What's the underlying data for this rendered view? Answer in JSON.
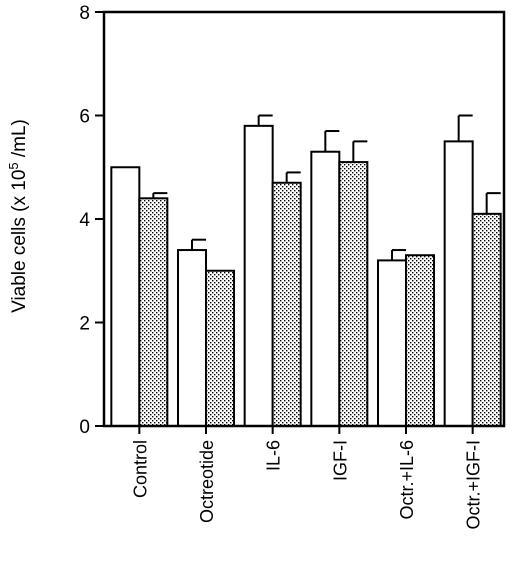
{
  "chart_data": {
    "type": "bar",
    "title": "",
    "xlabel": "",
    "ylabel": {
      "prefix": "Viable cells (x 10",
      "superscript": "5",
      "suffix": " /mL)"
    },
    "ylim": [
      0,
      8
    ],
    "yticks": [
      0,
      2,
      4,
      6,
      8
    ],
    "categories": [
      "Control",
      "Octreotide",
      "IL-6",
      "IGF-I",
      "Octr.+IL-6",
      "Octr.+IGF-I"
    ],
    "series": [
      {
        "fill": "white",
        "values": [
          5.0,
          3.4,
          5.8,
          5.3,
          3.2,
          5.5
        ],
        "errors": [
          0.0,
          0.2,
          0.2,
          0.4,
          0.2,
          0.5
        ]
      },
      {
        "fill": "stippled",
        "values": [
          4.4,
          3.0,
          4.7,
          5.1,
          3.3,
          4.1
        ],
        "errors": [
          0.1,
          0.0,
          0.2,
          0.4,
          0.0,
          0.4
        ]
      }
    ],
    "grid": false,
    "legend": "none"
  }
}
